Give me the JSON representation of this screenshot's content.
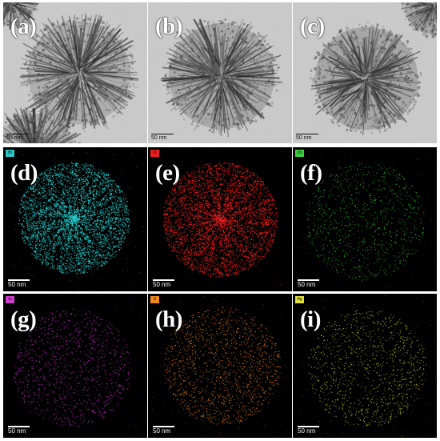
{
  "panels": [
    {
      "id": "a",
      "label": "(a)",
      "kind": "tem",
      "scale_bar": "50 nm"
    },
    {
      "id": "b",
      "label": "(b)",
      "kind": "tem",
      "scale_bar": "50 nm"
    },
    {
      "id": "c",
      "label": "(c)",
      "kind": "tem",
      "scale_bar": "50 nm"
    },
    {
      "id": "d",
      "label": "(d)",
      "kind": "eds",
      "element": "Bi",
      "map_color": "#22d0d0",
      "chip_color": "#2cc7c7",
      "scale_bar": "50 nm"
    },
    {
      "id": "e",
      "label": "(e)",
      "kind": "eds",
      "element": "O",
      "map_color": "#ee1c1c",
      "chip_color": "#e82020",
      "scale_bar": "50 nm"
    },
    {
      "id": "f",
      "label": "(f)",
      "kind": "eds",
      "element": "Zn",
      "map_color": "#27b327",
      "chip_color": "#3ccf3c",
      "scale_bar": "50 nm"
    },
    {
      "id": "g",
      "label": "(g)",
      "kind": "eds",
      "element": "In",
      "map_color": "#c428c4",
      "chip_color": "#cf3ccf",
      "scale_bar": "50 nm"
    },
    {
      "id": "h",
      "label": "(h)",
      "kind": "eds",
      "element": "S",
      "map_color": "#e27818",
      "chip_color": "#ee8a22",
      "scale_bar": "50 nm"
    },
    {
      "id": "i",
      "label": "(i)",
      "kind": "eds",
      "element": "Ag",
      "map_color": "#c4c41e",
      "chip_color": "#e0e03a",
      "scale_bar": "50 nm"
    }
  ]
}
